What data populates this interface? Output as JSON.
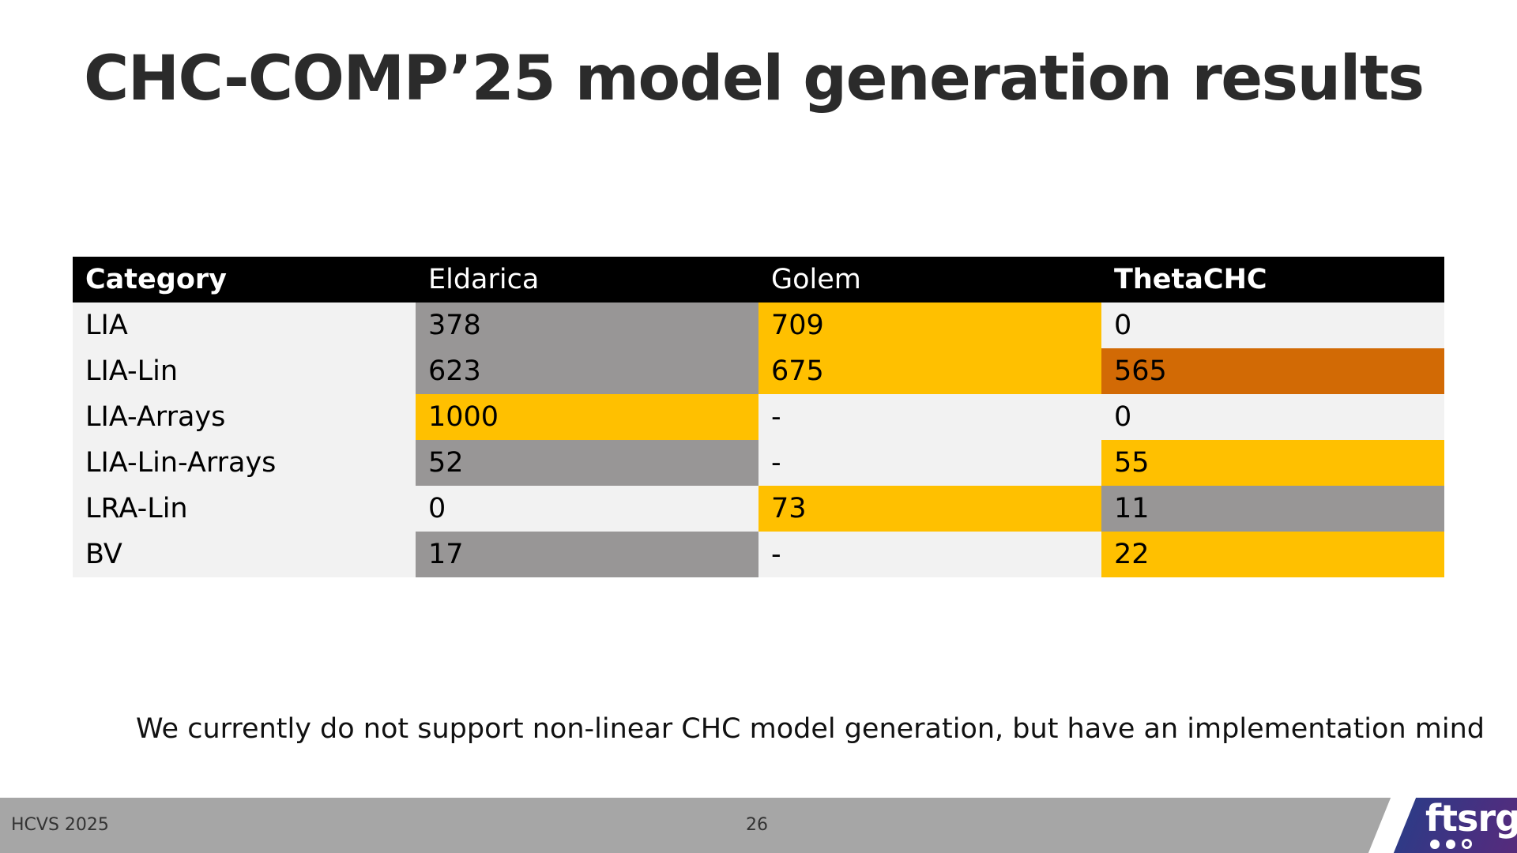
{
  "slide": {
    "title": "CHC-COMP’25 model generation results",
    "note": "We currently do not support non-linear CHC model generation, but have an implementation mind"
  },
  "table": {
    "headers": [
      "Category",
      "Eldarica",
      "Golem",
      "ThetaCHC"
    ],
    "rows": [
      {
        "category": "LIA",
        "eldarica": "378",
        "golem": "709",
        "thetachc": "0"
      },
      {
        "category": "LIA-Lin",
        "eldarica": "623",
        "golem": "675",
        "thetachc": "565"
      },
      {
        "category": "LIA-Arrays",
        "eldarica": "1000",
        "golem": "-",
        "thetachc": "0"
      },
      {
        "category": "LIA-Lin-Arrays",
        "eldarica": "52",
        "golem": "-",
        "thetachc": "55"
      },
      {
        "category": "LRA-Lin",
        "eldarica": "0",
        "golem": "73",
        "thetachc": "11"
      },
      {
        "category": "BV",
        "eldarica": "17",
        "golem": "-",
        "thetachc": "22"
      }
    ]
  },
  "colors": {
    "header_bg": "#000000",
    "row_bg": "#f2f2f2",
    "second_place": "#989696",
    "first_place": "#ffc000",
    "third_place": "#d26a05",
    "footer_bg": "#a6a6a6"
  },
  "footer": {
    "event": "HCVS 2025",
    "page_number": "26",
    "logo_text": "ftsrg"
  }
}
